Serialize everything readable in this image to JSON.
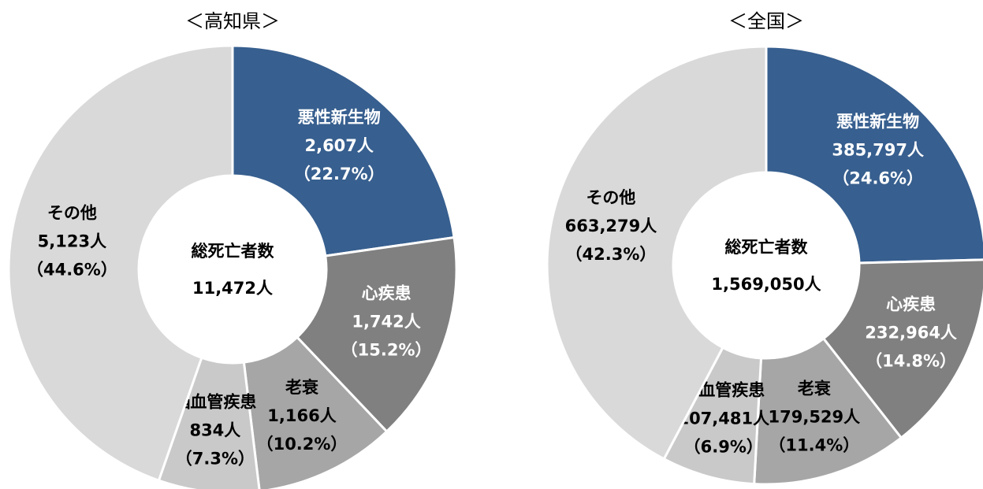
{
  "chart_data": [
    {
      "type": "pie",
      "title": "＜高知県＞",
      "center_label": "総死亡者数",
      "total_label": "11,472人",
      "categories": [
        "悪性新生物",
        "心疾患",
        "老衰",
        "脳血管疾患",
        "その他"
      ],
      "values": [
        2607,
        1742,
        1166,
        834,
        5123
      ],
      "value_labels": [
        "2,607人",
        "1,742人",
        "1,166人",
        "834人",
        "5,123人"
      ],
      "percent_labels": [
        "（22.7%）",
        "（15.2%）",
        "（10.2%）",
        "（7.3%）",
        "（44.6%）"
      ],
      "colors": [
        "#375f8f",
        "#808080",
        "#a6a6a6",
        "#c9c9c9",
        "#d9d9d9"
      ]
    },
    {
      "type": "pie",
      "title": "＜全国＞",
      "center_label": "総死亡者数",
      "total_label": "1,569,050人",
      "categories": [
        "悪性新生物",
        "心疾患",
        "老衰",
        "脳血管疾患",
        "その他"
      ],
      "values": [
        385797,
        232964,
        179529,
        107481,
        663279
      ],
      "value_labels": [
        "385,797人",
        "232,964人",
        "179,529人",
        "107,481人",
        "663,279人"
      ],
      "percent_labels": [
        "（24.6%）",
        "（14.8%）",
        "（11.4%）",
        "（6.9%）",
        "（42.3%）"
      ],
      "colors": [
        "#375f8f",
        "#808080",
        "#a6a6a6",
        "#c9c9c9",
        "#d9d9d9"
      ]
    }
  ]
}
